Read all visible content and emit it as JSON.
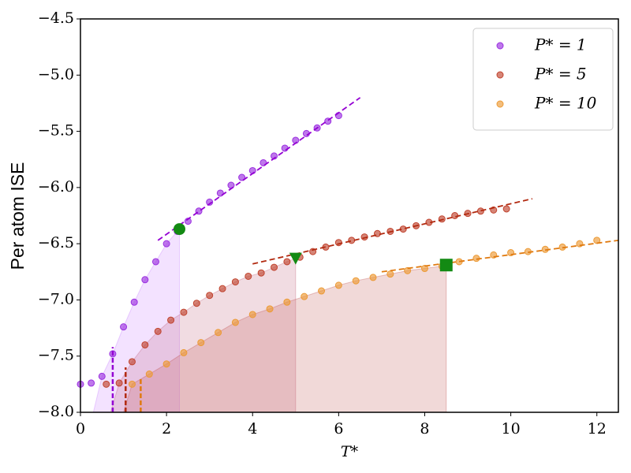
{
  "chart_data": {
    "type": "scatter",
    "xlabel": "T*",
    "ylabel": "Per atom ISE",
    "xlim": [
      0,
      12.5
    ],
    "ylim": [
      -8.0,
      -4.5
    ],
    "xticks": [
      0,
      2,
      4,
      6,
      8,
      10,
      12
    ],
    "yticks": [
      {
        "value": -8.0,
        "label": "−8.0"
      },
      {
        "value": -7.5,
        "label": "−7.5"
      },
      {
        "value": -7.0,
        "label": "−7.0"
      },
      {
        "value": -6.5,
        "label": "−6.5"
      },
      {
        "value": -6.0,
        "label": "−6.0"
      },
      {
        "value": -5.5,
        "label": "−5.5"
      },
      {
        "value": -5.0,
        "label": "−5.0"
      },
      {
        "value": -4.5,
        "label": "−4.5"
      }
    ],
    "legend": "upper right",
    "series": [
      {
        "name": "P* = 1",
        "color": "#9b30e0",
        "x": [
          0,
          0.25,
          0.5,
          0.75,
          1.0,
          1.25,
          1.5,
          1.75,
          2.0,
          2.25,
          2.5,
          2.75,
          3.0,
          3.25,
          3.5,
          3.75,
          4.0,
          4.25,
          4.5,
          4.75,
          5.0,
          5.25,
          5.5,
          5.75,
          6.0
        ],
        "values": [
          -7.75,
          -7.74,
          -7.68,
          -7.48,
          -7.24,
          -7.02,
          -6.82,
          -6.66,
          -6.5,
          -6.39,
          -6.3,
          -6.21,
          -6.13,
          -6.05,
          -5.98,
          -5.91,
          -5.85,
          -5.78,
          -5.72,
          -5.65,
          -5.58,
          -5.52,
          -5.47,
          -5.41,
          -5.36
        ]
      },
      {
        "name": "P* = 5",
        "color": "#c0432e",
        "x": [
          0.6,
          0.9,
          1.2,
          1.5,
          1.8,
          2.1,
          2.4,
          2.7,
          3.0,
          3.3,
          3.6,
          3.9,
          4.2,
          4.5,
          4.8,
          5.1,
          5.4,
          5.7,
          6.0,
          6.3,
          6.6,
          6.9,
          7.2,
          7.5,
          7.8,
          8.1,
          8.4,
          8.7,
          9.0,
          9.3,
          9.6,
          9.9
        ],
        "values": [
          -7.75,
          -7.74,
          -7.55,
          -7.4,
          -7.28,
          -7.18,
          -7.11,
          -7.03,
          -6.96,
          -6.9,
          -6.84,
          -6.79,
          -6.76,
          -6.71,
          -6.66,
          -6.62,
          -6.57,
          -6.53,
          -6.49,
          -6.47,
          -6.44,
          -6.41,
          -6.39,
          -6.37,
          -6.34,
          -6.31,
          -6.28,
          -6.25,
          -6.23,
          -6.21,
          -6.2,
          -6.19
        ]
      },
      {
        "name": "P* = 10",
        "color": "#ec9a35",
        "x": [
          1.2,
          1.6,
          2.0,
          2.4,
          2.8,
          3.2,
          3.6,
          4.0,
          4.4,
          4.8,
          5.2,
          5.6,
          6.0,
          6.4,
          6.8,
          7.2,
          7.6,
          8.0,
          8.4,
          8.8,
          9.2,
          9.6,
          10.0,
          10.4,
          10.8,
          11.2,
          11.6,
          12.0
        ],
        "values": [
          -7.75,
          -7.66,
          -7.57,
          -7.47,
          -7.38,
          -7.29,
          -7.2,
          -7.13,
          -7.08,
          -7.02,
          -6.97,
          -6.92,
          -6.87,
          -6.83,
          -6.8,
          -6.77,
          -6.74,
          -6.72,
          -6.7,
          -6.66,
          -6.63,
          -6.6,
          -6.58,
          -6.57,
          -6.55,
          -6.53,
          -6.5,
          -6.47
        ]
      }
    ],
    "shaded_regions": [
      {
        "from": 0.3,
        "to": 2.3,
        "color": "#c77dff"
      },
      {
        "from": 0.7,
        "to": 5.0,
        "color": "#c0607a"
      },
      {
        "from": 1.0,
        "to": 8.5,
        "color": "#c0504d"
      }
    ],
    "tangent_lines": [
      {
        "x": [
          1.8,
          6.5
        ],
        "y": [
          -6.47,
          -5.2
        ],
        "color": "#9400d3"
      },
      {
        "x": [
          4.0,
          10.5
        ],
        "y": [
          -6.68,
          -6.1
        ],
        "color": "#b22a10"
      },
      {
        "x": [
          7.0,
          12.5
        ],
        "y": [
          -6.75,
          -6.47
        ],
        "color": "#e07a10"
      }
    ],
    "vlines": [
      {
        "x": 0.75,
        "y0": -8.0,
        "y1": -7.42,
        "color": "#9400d3"
      },
      {
        "x": 1.05,
        "y0": -8.0,
        "y1": -7.6,
        "color": "#b22a10"
      },
      {
        "x": 1.4,
        "y0": -8.0,
        "y1": -7.7,
        "color": "#e07a10"
      }
    ],
    "markers": [
      {
        "x": 2.3,
        "y": -6.37,
        "shape": "circle",
        "color": "#138a13"
      },
      {
        "x": 5.0,
        "y": -6.63,
        "shape": "triangle",
        "color": "#138a13"
      },
      {
        "x": 8.5,
        "y": -6.69,
        "shape": "square",
        "color": "#138a13"
      }
    ]
  }
}
